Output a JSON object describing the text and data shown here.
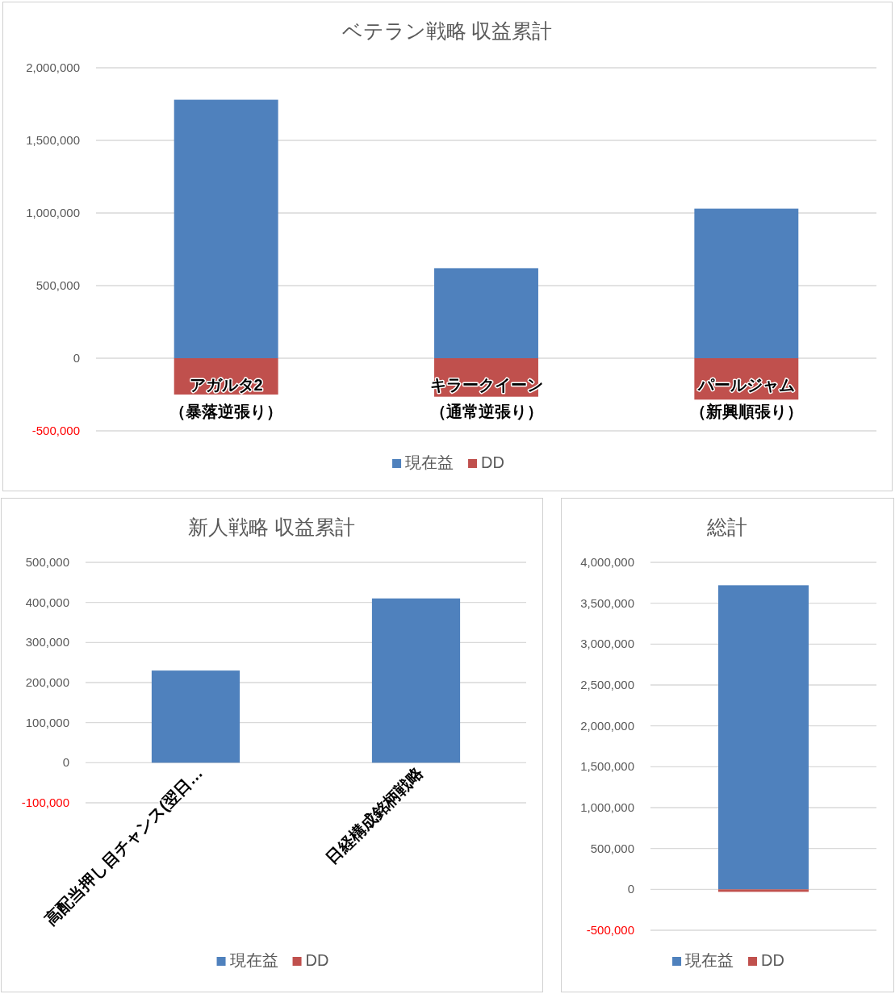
{
  "chart_data": [
    {
      "type": "bar",
      "title": "ベテラン戦略 収益累計",
      "categories": [
        "アガルタ2（暴落逆張り）",
        "キラークイーン（通常逆張り）",
        "パールジャム（新興順張り）"
      ],
      "stacked": true,
      "grid": "y",
      "legend": "bottom",
      "series": [
        {
          "name": "現在益",
          "color": "#4f81bd",
          "values": [
            1780000,
            620000,
            1030000
          ]
        },
        {
          "name": "DD",
          "color": "#c0504d",
          "values": [
            -250000,
            -265000,
            -285000
          ]
        }
      ],
      "ylim": [
        -500000,
        2000000
      ],
      "yticks": [
        {
          "value": -500000,
          "label": "-500,000"
        },
        {
          "value": 0,
          "label": "0"
        },
        {
          "value": 500000,
          "label": "500,000"
        },
        {
          "value": 1000000,
          "label": "1,000,000"
        },
        {
          "value": 1500000,
          "label": "1,500,000"
        },
        {
          "value": 2000000,
          "label": "2,000,000"
        }
      ]
    },
    {
      "type": "bar",
      "title": "新人戦略 収益累計",
      "categories": [
        "高配当押し目チャンス(翌日…",
        "日経構成銘柄戦略"
      ],
      "stacked": true,
      "grid": "y",
      "legend": "bottom",
      "series": [
        {
          "name": "現在益",
          "color": "#4f81bd",
          "values": [
            230000,
            410000
          ]
        },
        {
          "name": "DD",
          "color": "#c0504d",
          "values": [
            0,
            0
          ]
        }
      ],
      "ylim": [
        -100000,
        500000
      ],
      "yticks": [
        {
          "value": -100000,
          "label": "-100,000"
        },
        {
          "value": 0,
          "label": "0"
        },
        {
          "value": 100000,
          "label": "100,000"
        },
        {
          "value": 200000,
          "label": "200,000"
        },
        {
          "value": 300000,
          "label": "300,000"
        },
        {
          "value": 400000,
          "label": "400,000"
        },
        {
          "value": 500000,
          "label": "500,000"
        }
      ]
    },
    {
      "type": "bar",
      "title": "総計",
      "categories": [
        null
      ],
      "stacked": true,
      "grid": "y",
      "legend": "bottom",
      "series": [
        {
          "name": "現在益",
          "color": "#4f81bd",
          "values": [
            3720000
          ]
        },
        {
          "name": "DD",
          "color": "#c0504d",
          "values": [
            -30000
          ]
        }
      ],
      "ylim": [
        -500000,
        4000000
      ],
      "yticks": [
        {
          "value": -500000,
          "label": "-500,000"
        },
        {
          "value": 0,
          "label": "0"
        },
        {
          "value": 500000,
          "label": "500,000"
        },
        {
          "value": 1000000,
          "label": "1,000,000"
        },
        {
          "value": 1500000,
          "label": "1,500,000"
        },
        {
          "value": 2000000,
          "label": "2,000,000"
        },
        {
          "value": 2500000,
          "label": "2,500,000"
        },
        {
          "value": 3000000,
          "label": "3,000,000"
        },
        {
          "value": 3500000,
          "label": "3,500,000"
        },
        {
          "value": 4000000,
          "label": "4,000,000"
        }
      ]
    }
  ]
}
